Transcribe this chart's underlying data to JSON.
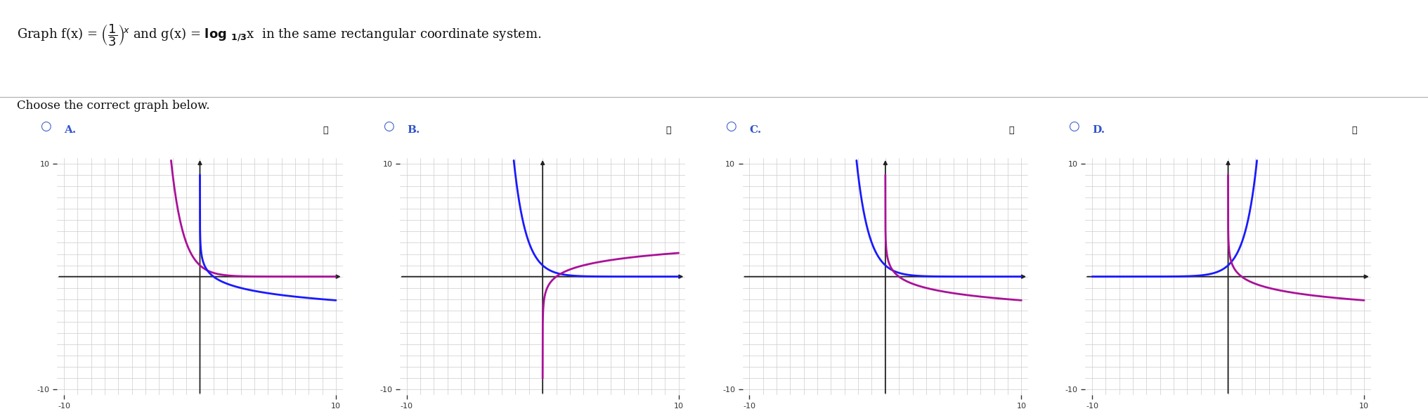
{
  "bg_color": "#ffffff",
  "grid_color": "#cccccc",
  "exp_color": "#1a1aff",
  "log_color": "#aa1199",
  "option_label_color": "#3355cc",
  "xlim": [
    -10,
    10
  ],
  "ylim": [
    -10,
    10
  ],
  "header_line1": "Graph f(x) = ",
  "header_fraction_num": "1",
  "header_fraction_den": "3",
  "header_exponent": "x",
  "header_line2": "  and g(x) = log",
  "header_subscript": "1/3",
  "header_var": "x",
  "header_end": "  in the same rectangular coordinate system.",
  "subtitle": "Choose the correct graph below.",
  "options": [
    "A.",
    "B.",
    "C.",
    "D."
  ],
  "graphs": {
    "A": {
      "exp_func": "exp_1_3",
      "log_func": "log_3_neg",
      "exp_color_role": "purple",
      "log_color_role": "blue",
      "note": "purple=(1/3)^x decreasing right, blue=log_3(x) going negative below x-axis steeply"
    },
    "B": {
      "exp_func": "exp_1_3",
      "log_func": "log_3_pos",
      "exp_color_role": "blue",
      "log_color_role": "purple",
      "note": "blue=(1/3)^x, purple=log_3(x) increasing from bottom to top"
    },
    "C": {
      "exp_func": "exp_1_3",
      "log_func": "log_1_3",
      "exp_color_role": "blue",
      "log_color_role": "purple",
      "note": "blue=(1/3)^x, purple=log_{1/3}(x) decreasing"
    },
    "D": {
      "exp_func": "exp_3",
      "log_func": "log_1_3",
      "exp_color_role": "blue",
      "log_color_role": "purple",
      "note": "blue=3^x increasing, purple=log_{1/3}(x) decreasing"
    }
  }
}
